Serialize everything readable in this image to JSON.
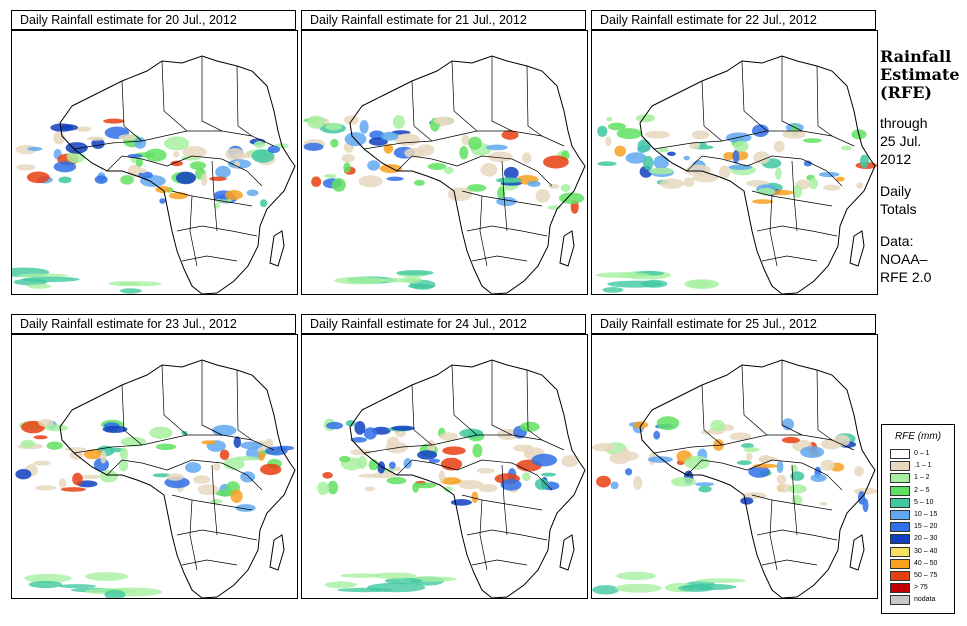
{
  "panels": [
    {
      "title": "Daily Rainfall estimate for  20 Jul., 2012",
      "seed": 1
    },
    {
      "title": "Daily Rainfall estimate for  21 Jul., 2012",
      "seed": 2
    },
    {
      "title": "Daily Rainfall estimate for  22 Jul., 2012",
      "seed": 3
    },
    {
      "title": "Daily Rainfall estimate for  23 Jul., 2012",
      "seed": 4
    },
    {
      "title": "Daily Rainfall estimate for  24 Jul., 2012",
      "seed": 5
    },
    {
      "title": "Daily Rainfall estimate for  25 Jul., 2012",
      "seed": 6
    }
  ],
  "sidebar": {
    "heading_line1": "Rainfall",
    "heading_line2": "Estimate",
    "heading_line3": "(RFE)",
    "through_label": "through",
    "through_date_line1": "25 Jul.",
    "through_date_line2": "2012",
    "totals_line1": "Daily",
    "totals_line2": "Totals",
    "data_label": "Data:",
    "data_source_line1": "NOAA–",
    "data_source_line2": "RFE 2.0"
  },
  "legend": {
    "title": "RFE (mm)",
    "items": [
      {
        "label": "0 – 1",
        "color": "#ffffff"
      },
      {
        "label": ".1 – 1",
        "color": "#e8d8c0"
      },
      {
        "label": "1 – 2",
        "color": "#a8f0a0"
      },
      {
        "label": "2 – 5",
        "color": "#60e060"
      },
      {
        "label": "5 – 10",
        "color": "#40c8a0"
      },
      {
        "label": "10 – 15",
        "color": "#60a8f0"
      },
      {
        "label": "15 – 20",
        "color": "#3070e8"
      },
      {
        "label": "20 – 30",
        "color": "#1040c0"
      },
      {
        "label": "30 – 40",
        "color": "#f8e060"
      },
      {
        "label": "40 – 50",
        "color": "#f8a020"
      },
      {
        "label": "50 – 75",
        "color": "#e84010"
      },
      {
        "label": "> 75",
        "color": "#c00000"
      },
      {
        "label": "nodata",
        "color": "#c8c8c8"
      }
    ]
  }
}
